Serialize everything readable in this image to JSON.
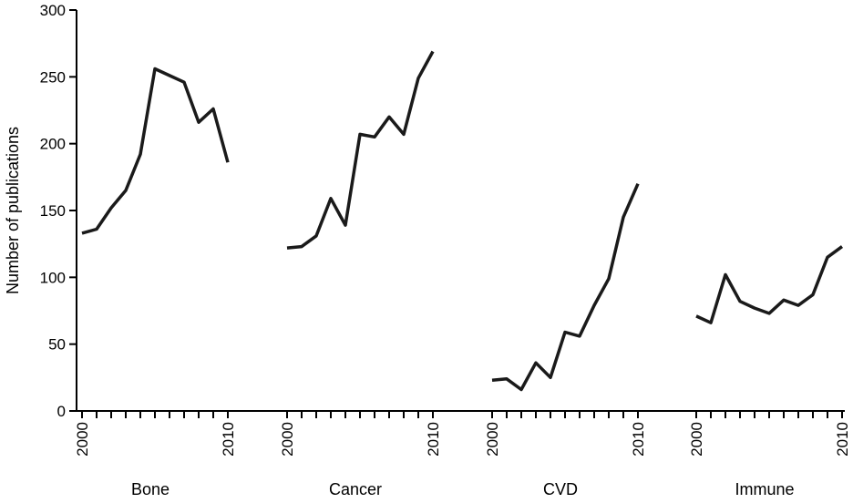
{
  "chart_data": {
    "type": "line",
    "ylabel": "Number of publications",
    "ylim": [
      0,
      300
    ],
    "yticks": [
      0,
      50,
      100,
      150,
      200,
      250,
      300
    ],
    "x": [
      2000,
      2001,
      2002,
      2003,
      2004,
      2005,
      2006,
      2007,
      2008,
      2009,
      2010
    ],
    "xtick_labels": [
      "2000",
      "2010"
    ],
    "grid": false,
    "legend": "none",
    "line_color": "#1a1a1a",
    "groups": [
      {
        "label": "Bone",
        "values": [
          133,
          136,
          152,
          165,
          192,
          256,
          251,
          246,
          216,
          226,
          186
        ]
      },
      {
        "label": "Cancer",
        "values": [
          122,
          123,
          131,
          159,
          139,
          207,
          205,
          220,
          207,
          249,
          269
        ]
      },
      {
        "label": "CVD",
        "values": [
          23,
          24,
          16,
          36,
          25,
          59,
          56,
          79,
          99,
          145,
          170
        ]
      },
      {
        "label": "Immune",
        "values": [
          71,
          66,
          102,
          82,
          77,
          73,
          83,
          79,
          87,
          115,
          123
        ]
      }
    ]
  }
}
